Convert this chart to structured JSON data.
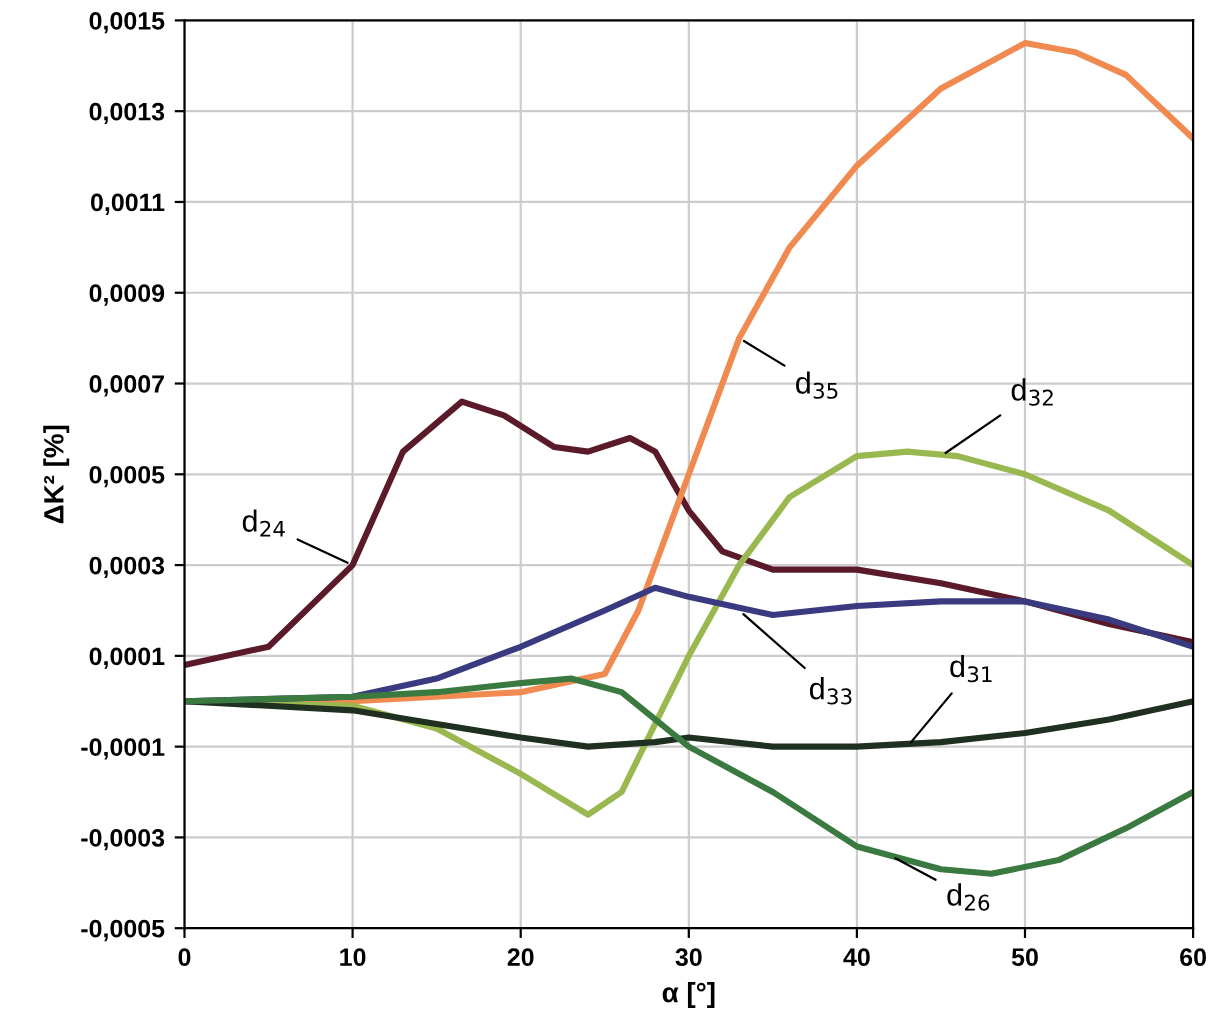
{
  "chart_data": {
    "type": "line",
    "xlabel": "α [°]",
    "ylabel": "ΔK² [%]",
    "grid": true,
    "legend": false,
    "marker": "none",
    "line_style": "solid",
    "xlim": [
      0,
      60
    ],
    "xticks": [
      0,
      10,
      20,
      30,
      40,
      50,
      60
    ],
    "ylim": [
      -0.0005,
      0.0015
    ],
    "yticks": [
      {
        "value": -0.0005,
        "label": "-0,0005"
      },
      {
        "value": -0.0003,
        "label": "-0,0003"
      },
      {
        "value": -0.0001,
        "label": "-0,0001"
      },
      {
        "value": 0.0001,
        "label": "0,0001"
      },
      {
        "value": 0.0003,
        "label": "0,0003"
      },
      {
        "value": 0.0005,
        "label": "0,0005"
      },
      {
        "value": 0.0007,
        "label": "0,0007"
      },
      {
        "value": 0.0009,
        "label": "0,0009"
      },
      {
        "value": 0.0011,
        "label": "0,0011"
      },
      {
        "value": 0.0013,
        "label": "0,0013"
      },
      {
        "value": 0.0015,
        "label": "0,0015"
      }
    ],
    "series": [
      {
        "color": "#5a1a2a",
        "x": [
          0,
          5,
          10,
          13,
          16.5,
          19,
          22,
          24,
          26.5,
          28,
          30,
          32,
          35,
          40,
          45,
          50,
          55,
          60
        ],
        "values": [
          8e-05,
          0.00012,
          0.0003,
          0.00055,
          0.00066,
          0.00063,
          0.00056,
          0.00055,
          0.00058,
          0.00055,
          0.00042,
          0.00033,
          0.00029,
          0.00029,
          0.00026,
          0.00022,
          0.00017,
          0.00013
        ]
      },
      {
        "color": "#f08a50",
        "x": [
          0,
          10,
          20,
          25,
          27,
          30,
          33,
          36,
          40,
          45,
          50,
          53,
          56,
          60
        ],
        "values": [
          0,
          0,
          2e-05,
          6e-05,
          0.0002,
          0.0005,
          0.0008,
          0.001,
          0.00118,
          0.00135,
          0.00145,
          0.00143,
          0.00138,
          0.00124
        ]
      },
      {
        "color": "#9ab850",
        "x": [
          0,
          10,
          15,
          20,
          24,
          26,
          28,
          30,
          33,
          36,
          40,
          43,
          46,
          50,
          55,
          60
        ],
        "values": [
          0,
          -1e-05,
          -6e-05,
          -0.00016,
          -0.00025,
          -0.0002,
          -5e-05,
          0.0001,
          0.0003,
          0.00045,
          0.00054,
          0.00055,
          0.00054,
          0.0005,
          0.00042,
          0.0003
        ]
      },
      {
        "color": "#3a3a80",
        "x": [
          0,
          10,
          15,
          20,
          25,
          28,
          30,
          35,
          40,
          45,
          50,
          55,
          60
        ],
        "values": [
          0,
          1e-05,
          5e-05,
          0.00012,
          0.0002,
          0.00025,
          0.00023,
          0.00019,
          0.00021,
          0.00022,
          0.00022,
          0.00018,
          0.00012
        ]
      },
      {
        "color": "#203020",
        "x": [
          0,
          10,
          15,
          20,
          24,
          28,
          30,
          35,
          40,
          45,
          50,
          55,
          60
        ],
        "values": [
          0,
          -2e-05,
          -5e-05,
          -8e-05,
          -0.0001,
          -9e-05,
          -8e-05,
          -0.0001,
          -0.0001,
          -9e-05,
          -7e-05,
          -4e-05,
          0
        ]
      },
      {
        "color": "#3a7a40",
        "x": [
          0,
          10,
          15,
          20,
          23,
          26,
          30,
          35,
          40,
          45,
          48,
          52,
          56,
          60
        ],
        "values": [
          0,
          1e-05,
          2e-05,
          4e-05,
          5e-05,
          2e-05,
          -0.0001,
          -0.0002,
          -0.00032,
          -0.00037,
          -0.00038,
          -0.00035,
          -0.00028,
          -0.0002
        ]
      }
    ],
    "annotations": [
      {
        "text": "d$_{24}$",
        "x": 10,
        "y": 0.0003
      },
      {
        "text": "d$_{35}$",
        "x": 33,
        "y": 0.0008
      },
      {
        "text": "d$_{32}$",
        "x": 45,
        "y": 0.00054
      },
      {
        "text": "d$_{33}$",
        "x": 33,
        "y": 0.0002
      },
      {
        "text": "d$_{31}$",
        "x": 43,
        "y": -0.0001
      },
      {
        "text": "d$_{26}$",
        "x": 42,
        "y": -0.00034
      }
    ]
  }
}
